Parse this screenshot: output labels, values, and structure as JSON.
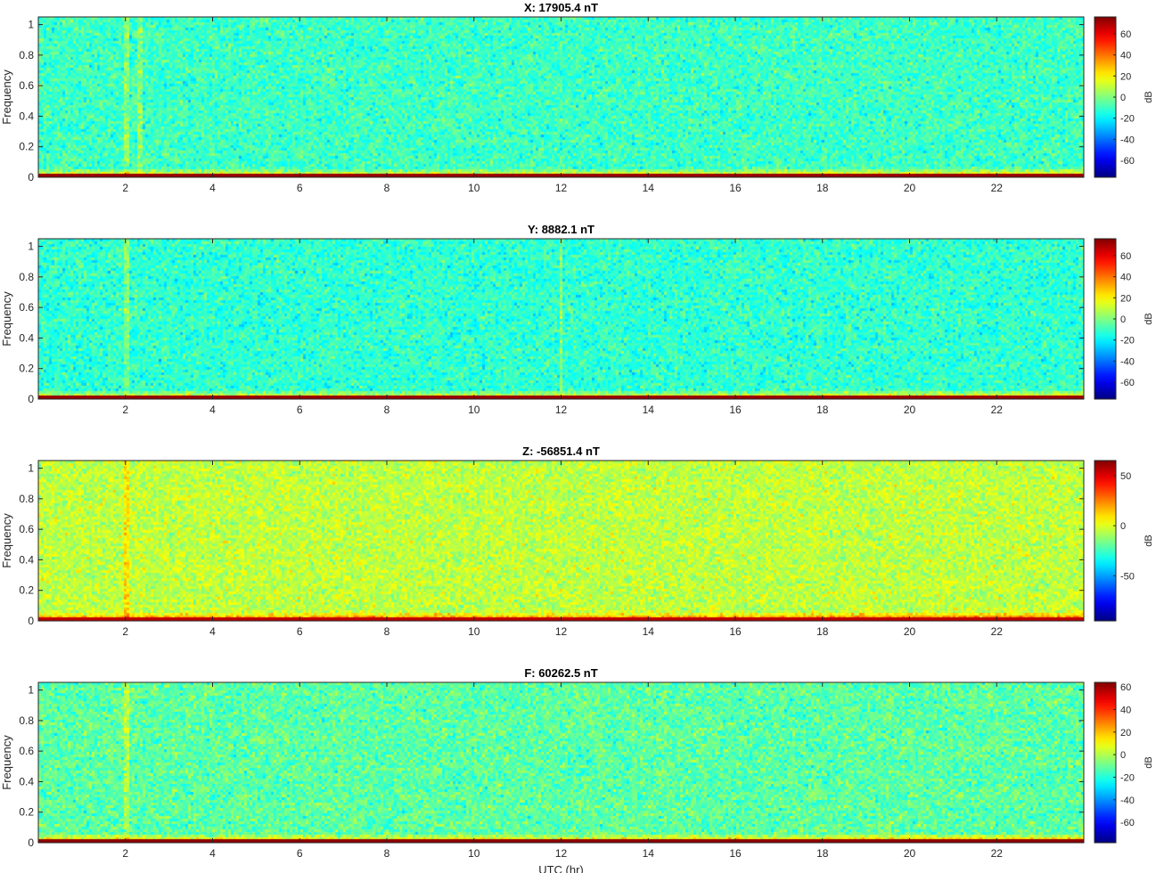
{
  "chart_data": [
    {
      "type": "heatmap",
      "title": "X: 17905.4 nT",
      "xlabel": "",
      "ylabel": "Frequency",
      "xlim": [
        0,
        24
      ],
      "ylim": [
        0,
        1.05
      ],
      "xticks": [
        2,
        4,
        6,
        8,
        10,
        12,
        14,
        16,
        18,
        20,
        22
      ],
      "yticks": [
        0,
        0.2,
        0.4,
        0.6,
        0.8,
        1
      ],
      "colorbar": {
        "label": "dB",
        "range": [
          -76,
          76
        ],
        "ticks": [
          -60,
          -40,
          -20,
          0,
          20,
          40,
          60
        ]
      },
      "colormap": "jet",
      "noise_floor_db": -10,
      "low_freq_band_db": 30,
      "dc_line_db": 72,
      "spike_hours": [
        2.0,
        2.35
      ]
    },
    {
      "type": "heatmap",
      "title": "Y: 8882.1 nT",
      "xlabel": "",
      "ylabel": "Frequency",
      "xlim": [
        0,
        24
      ],
      "ylim": [
        0,
        1.05
      ],
      "xticks": [
        2,
        4,
        6,
        8,
        10,
        12,
        14,
        16,
        18,
        20,
        22
      ],
      "yticks": [
        0,
        0.2,
        0.4,
        0.6,
        0.8,
        1
      ],
      "colorbar": {
        "label": "dB",
        "range": [
          -76,
          76
        ],
        "ticks": [
          -60,
          -40,
          -20,
          0,
          20,
          40,
          60
        ]
      },
      "colormap": "jet",
      "noise_floor_db": -12,
      "low_freq_band_db": 28,
      "dc_line_db": 72,
      "spike_hours": [
        2.0,
        12.0
      ]
    },
    {
      "type": "heatmap",
      "title": "Z: -56851.4 nT",
      "xlabel": "",
      "ylabel": "Frequency",
      "xlim": [
        0,
        24
      ],
      "ylim": [
        0,
        1.05
      ],
      "xticks": [
        2,
        4,
        6,
        8,
        10,
        12,
        14,
        16,
        18,
        20,
        22
      ],
      "yticks": [
        0,
        0.2,
        0.4,
        0.6,
        0.8,
        1
      ],
      "colorbar": {
        "label": "dB",
        "range": [
          -95,
          65
        ],
        "ticks": [
          -50,
          0,
          50
        ]
      },
      "colormap": "jet",
      "noise_floor_db": -5,
      "low_freq_band_db": 35,
      "dc_line_db": 55,
      "spike_hours": [
        2.0
      ]
    },
    {
      "type": "heatmap",
      "title": "F: 60262.5 nT",
      "xlabel": "UTC (hr)",
      "ylabel": "Frequency",
      "xlim": [
        0,
        24
      ],
      "ylim": [
        0,
        1.05
      ],
      "xticks": [
        2,
        4,
        6,
        8,
        10,
        12,
        14,
        16,
        18,
        20,
        22
      ],
      "yticks": [
        0,
        0.2,
        0.4,
        0.6,
        0.8,
        1
      ],
      "colorbar": {
        "label": "dB",
        "range": [
          -78,
          64
        ],
        "ticks": [
          -60,
          -40,
          -20,
          0,
          20,
          40,
          60
        ]
      },
      "colormap": "jet",
      "noise_floor_db": -12,
      "low_freq_band_db": 26,
      "dc_line_db": 62,
      "spike_hours": [
        2.0
      ]
    }
  ]
}
